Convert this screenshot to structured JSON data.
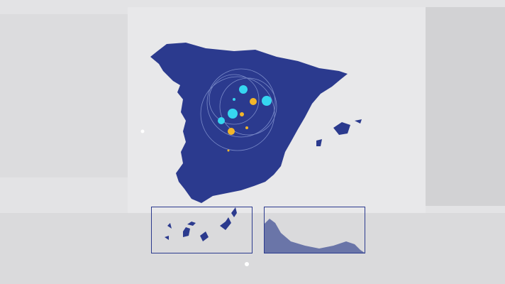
{
  "colors": {
    "background": "#e3e3e5",
    "map_fill": "#2b3a8e",
    "inset_border": "#2b3a8e",
    "marker_cyan": "#36d6f0",
    "marker_yellow": "#f2b62a",
    "orbit_stroke": "#8fa0d8"
  },
  "map": {
    "region": "Spain",
    "insets": [
      "canary-islands",
      "ceuta-melilla"
    ]
  }
}
